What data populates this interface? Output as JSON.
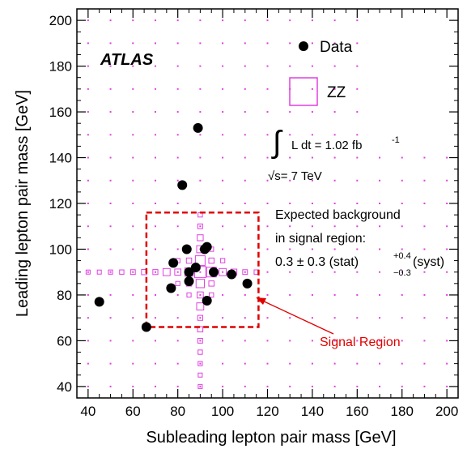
{
  "chart_data": {
    "type": "scatter",
    "title": "",
    "xlabel": "Subleading lepton pair mass [GeV]",
    "ylabel": "Leading lepton pair mass [GeV]",
    "xlim": [
      35,
      205
    ],
    "ylim": [
      35,
      205
    ],
    "xticks": [
      40,
      60,
      80,
      100,
      120,
      140,
      160,
      180,
      200
    ],
    "yticks": [
      40,
      60,
      80,
      100,
      120,
      140,
      160,
      180,
      200
    ],
    "grid": false,
    "legend_position": "top-right",
    "experiment_label": "ATLAS",
    "legend": [
      {
        "label": "Data",
        "marker": "filled-circle",
        "color": "#000000"
      },
      {
        "label": "ZZ",
        "marker": "open-box",
        "color": "#e040e0"
      }
    ],
    "luminosity": {
      "integral_symbol": "∫",
      "text": "L dt = 1.02 fb",
      "superscript": "-1",
      "energy_text": "√s= 7 TeV"
    },
    "annotation": {
      "line1": "Expected background",
      "line2": "in signal region:",
      "line3_main": "0.3 ± 0.3 (stat)",
      "sup": "+0.4",
      "sub": "−0.3",
      "line3_tail": "(syst)"
    },
    "signal_region": {
      "label": "Signal Region",
      "x_range": [
        66,
        116
      ],
      "y_range": [
        66,
        116
      ],
      "color": "#e00000"
    },
    "series": [
      {
        "name": "Data",
        "color": "#000000",
        "points": [
          [
            45,
            77
          ],
          [
            66,
            66
          ],
          [
            78,
            94
          ],
          [
            77,
            83
          ],
          [
            84,
            100
          ],
          [
            85,
            86
          ],
          [
            85,
            90
          ],
          [
            88,
            92
          ],
          [
            89,
            153
          ],
          [
            82,
            128
          ],
          [
            92,
            100
          ],
          [
            93,
            77.5
          ],
          [
            93,
            101
          ],
          [
            96,
            90
          ],
          [
            104,
            89
          ],
          [
            111,
            85
          ]
        ]
      },
      {
        "name": "ZZ",
        "color": "#e040e0",
        "bin_width": 5,
        "bins": [
          [
            90,
            90,
            1.0
          ],
          [
            95,
            90,
            0.75
          ],
          [
            90,
            95,
            0.75
          ],
          [
            85,
            90,
            0.55
          ],
          [
            90,
            85,
            0.55
          ],
          [
            75,
            90,
            0.4
          ],
          [
            90,
            75,
            0.4
          ],
          [
            90,
            100,
            0.4
          ],
          [
            100,
            90,
            0.4
          ],
          [
            80,
            90,
            0.3
          ],
          [
            90,
            80,
            0.3
          ],
          [
            65,
            90,
            0.22
          ],
          [
            90,
            65,
            0.22
          ],
          [
            85,
            95,
            0.22
          ],
          [
            95,
            85,
            0.22
          ],
          [
            105,
            90,
            0.28
          ],
          [
            90,
            105,
            0.28
          ],
          [
            95,
            95,
            0.22
          ],
          [
            85,
            85,
            0.22
          ],
          [
            70,
            90,
            0.2
          ],
          [
            90,
            70,
            0.2
          ],
          [
            60,
            90,
            0.18
          ],
          [
            90,
            60,
            0.18
          ],
          [
            55,
            90,
            0.15
          ],
          [
            90,
            55,
            0.15
          ],
          [
            50,
            90,
            0.14
          ],
          [
            90,
            50,
            0.14
          ],
          [
            45,
            90,
            0.13
          ],
          [
            90,
            45,
            0.13
          ],
          [
            40,
            90,
            0.13
          ],
          [
            90,
            40,
            0.13
          ],
          [
            110,
            90,
            0.18
          ],
          [
            90,
            110,
            0.18
          ],
          [
            115,
            90,
            0.15
          ],
          [
            90,
            115,
            0.15
          ],
          [
            80,
            95,
            0.15
          ],
          [
            95,
            80,
            0.15
          ],
          [
            100,
            95,
            0.15
          ],
          [
            95,
            100,
            0.15
          ],
          [
            80,
            85,
            0.14
          ],
          [
            85,
            80,
            0.14
          ]
        ]
      }
    ]
  }
}
